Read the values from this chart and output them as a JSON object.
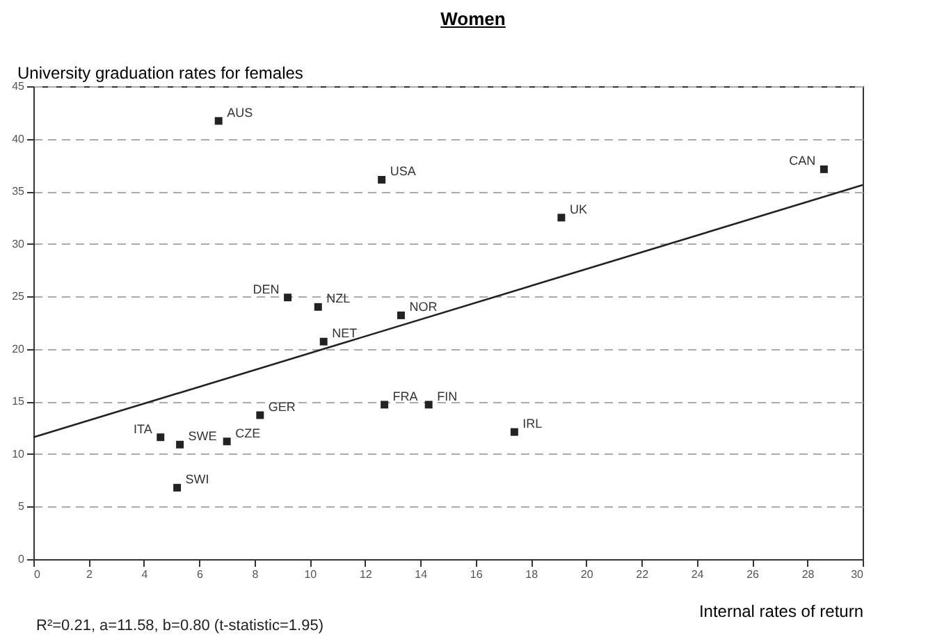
{
  "chart_data": {
    "type": "scatter",
    "title": "Women",
    "xlabel": "Internal rates of return",
    "ylabel": "University graduation rates for females",
    "xlim": [
      0,
      30
    ],
    "xticks": [
      0,
      2,
      4,
      6,
      8,
      10,
      12,
      14,
      16,
      18,
      20,
      22,
      24,
      26,
      28,
      30
    ],
    "ylim": [
      0,
      45
    ],
    "yticks": [
      0,
      5,
      10,
      15,
      20,
      25,
      30,
      35,
      40,
      45
    ],
    "grid": "y",
    "series": [
      {
        "type": "scatter",
        "marker": "square",
        "color": "#222222",
        "x": [
          6.7,
          12.6,
          28.6,
          19.1,
          9.2,
          10.3,
          13.3,
          10.5,
          12.7,
          14.3,
          17.4,
          8.2,
          4.6,
          5.3,
          7.0,
          5.2
        ],
        "values": [
          41.7,
          36.1,
          37.1,
          32.5,
          24.9,
          24.0,
          23.2,
          20.7,
          14.7,
          14.7,
          12.1,
          13.7,
          11.6,
          10.9,
          11.2,
          6.8
        ]
      },
      {
        "type": "line",
        "color": "#222222",
        "x": [
          0,
          30
        ],
        "values": [
          11.6,
          35.6
        ]
      }
    ],
    "annotations": [
      {
        "text": "AUS",
        "x": 6.7,
        "y": 41.7
      },
      {
        "text": "USA",
        "x": 12.6,
        "y": 36.1
      },
      {
        "text": "CAN",
        "x": 28.6,
        "y": 37.1
      },
      {
        "text": "UK",
        "x": 19.1,
        "y": 32.5
      },
      {
        "text": "DEN",
        "x": 9.2,
        "y": 24.9
      },
      {
        "text": "NZL",
        "x": 10.3,
        "y": 24.0
      },
      {
        "text": "NOR",
        "x": 13.3,
        "y": 23.2
      },
      {
        "text": "NET",
        "x": 10.5,
        "y": 20.7
      },
      {
        "text": "FRA",
        "x": 12.7,
        "y": 14.7
      },
      {
        "text": "FIN",
        "x": 14.3,
        "y": 14.7
      },
      {
        "text": "IRL",
        "x": 17.4,
        "y": 12.1
      },
      {
        "text": "GER",
        "x": 8.2,
        "y": 13.7
      },
      {
        "text": "ITA",
        "x": 4.6,
        "y": 11.6
      },
      {
        "text": "SWE",
        "x": 5.3,
        "y": 10.9
      },
      {
        "text": "CZE",
        "x": 7.0,
        "y": 11.2
      },
      {
        "text": "SWI",
        "x": 5.2,
        "y": 6.8
      },
      "R²=0.21, a=11.58, b=0.80 (t-statistic=1.95)"
    ]
  }
}
